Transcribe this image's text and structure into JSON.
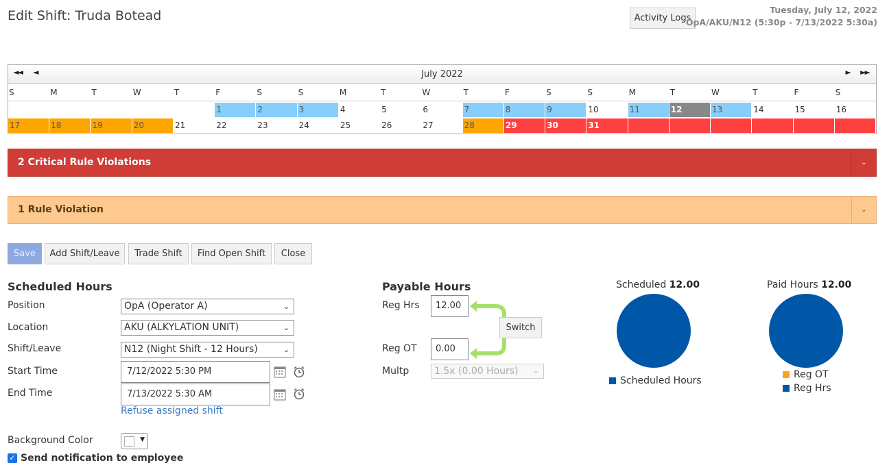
{
  "header": {
    "title": "Edit Shift: Truda Botead",
    "activity_logs": "Activity Logs",
    "date": "Tuesday, July 12, 2022",
    "shift_info": "OpA/AKU/N12 (5:30p - 7/13/2022 5:30a)"
  },
  "calendar": {
    "month": "July 2022",
    "nav": {
      "first": "◄◄",
      "prev": "◄",
      "next": "►",
      "last": "►►"
    },
    "weekdays": [
      "S",
      "M",
      "T",
      "W",
      "T",
      "F",
      "S",
      "S",
      "M",
      "T",
      "W",
      "T",
      "F",
      "S",
      "S",
      "M",
      "T",
      "W",
      "T",
      "F",
      "S"
    ],
    "row1": [
      {
        "label": "",
        "status": "none"
      },
      {
        "label": "",
        "status": "none"
      },
      {
        "label": "",
        "status": "none"
      },
      {
        "label": "",
        "status": "none"
      },
      {
        "label": "",
        "status": "none"
      },
      {
        "label": "1",
        "status": "blue"
      },
      {
        "label": "2",
        "status": "blue"
      },
      {
        "label": "3",
        "status": "blue"
      },
      {
        "label": "4",
        "status": "none"
      },
      {
        "label": "5",
        "status": "none"
      },
      {
        "label": "6",
        "status": "none"
      },
      {
        "label": "7",
        "status": "blue"
      },
      {
        "label": "8",
        "status": "blue"
      },
      {
        "label": "9",
        "status": "blue"
      },
      {
        "label": "10",
        "status": "none"
      },
      {
        "label": "11",
        "status": "blue"
      },
      {
        "label": "12",
        "status": "gray"
      },
      {
        "label": "13",
        "status": "blue"
      },
      {
        "label": "14",
        "status": "none"
      },
      {
        "label": "15",
        "status": "none"
      },
      {
        "label": "16",
        "status": "none"
      }
    ],
    "row2": [
      {
        "label": "17",
        "status": "orange"
      },
      {
        "label": "18",
        "status": "orange"
      },
      {
        "label": "19",
        "status": "orange"
      },
      {
        "label": "20",
        "status": "orange"
      },
      {
        "label": "21",
        "status": "none"
      },
      {
        "label": "22",
        "status": "none"
      },
      {
        "label": "23",
        "status": "none"
      },
      {
        "label": "24",
        "status": "none"
      },
      {
        "label": "25",
        "status": "none"
      },
      {
        "label": "26",
        "status": "none"
      },
      {
        "label": "27",
        "status": "none"
      },
      {
        "label": "28",
        "status": "orange"
      },
      {
        "label": "29",
        "status": "red"
      },
      {
        "label": "30",
        "status": "red"
      },
      {
        "label": "31",
        "status": "red"
      },
      {
        "label": "",
        "status": "red"
      },
      {
        "label": "",
        "status": "red"
      },
      {
        "label": "",
        "status": "red"
      },
      {
        "label": "",
        "status": "red"
      },
      {
        "label": "",
        "status": "red"
      },
      {
        "label": "",
        "status": "red"
      }
    ]
  },
  "violations": {
    "critical": "2 Critical Rule Violations",
    "rule": "1 Rule Violation"
  },
  "actions": {
    "save": "Save",
    "add": "Add Shift/Leave",
    "trade": "Trade Shift",
    "find": "Find Open Shift",
    "close": "Close"
  },
  "scheduled": {
    "heading": "Scheduled Hours",
    "position_label": "Position",
    "position_value": "OpA (Operator A)",
    "location_label": "Location",
    "location_value": "AKU (ALKYLATION UNIT)",
    "shift_label": "Shift/Leave",
    "shift_value": "N12 (Night Shift - 12 Hours)",
    "start_label": "Start Time",
    "start_value": "7/12/2022 5:30 PM",
    "end_label": "End Time",
    "end_value": "7/13/2022 5:30 AM",
    "refuse": "Refuse assigned shift",
    "bg_label": "Background Color",
    "notify_label": "Send notification to employee"
  },
  "payable": {
    "heading": "Payable Hours",
    "reg_hrs_label": "Reg Hrs",
    "reg_hrs_value": "12.00",
    "switch": "Switch",
    "reg_ot_label": "Reg OT",
    "reg_ot_value": "0.00",
    "multp_label": "Multp",
    "multp_value": "1.5x (0.00 Hours)"
  },
  "charts": {
    "scheduled": {
      "title": "Scheduled ",
      "total": "12.00",
      "legend": [
        "Scheduled Hours"
      ]
    },
    "paid": {
      "title": "Paid Hours ",
      "total": "12.00",
      "legend": [
        "Reg OT",
        "Reg Hrs"
      ]
    }
  },
  "chart_data": [
    {
      "type": "pie",
      "title": "Scheduled 12.00",
      "categories": [
        "Scheduled Hours"
      ],
      "values": [
        12.0
      ],
      "colors": [
        "#0057a8"
      ]
    },
    {
      "type": "pie",
      "title": "Paid Hours 12.00",
      "categories": [
        "Reg OT",
        "Reg Hrs"
      ],
      "values": [
        0.0,
        12.0
      ],
      "colors": [
        "#f5a623",
        "#0057a8"
      ]
    }
  ],
  "colors": {
    "blue_day": "#87cefa",
    "orange_day": "#ffa500",
    "red_day": "#ff4040",
    "today": "#888888",
    "critical": "#d03c36",
    "rule": "#fdc98f",
    "pie_blue": "#0057a8",
    "pie_orange": "#f5a623",
    "arrow_green": "#a6e06a"
  }
}
